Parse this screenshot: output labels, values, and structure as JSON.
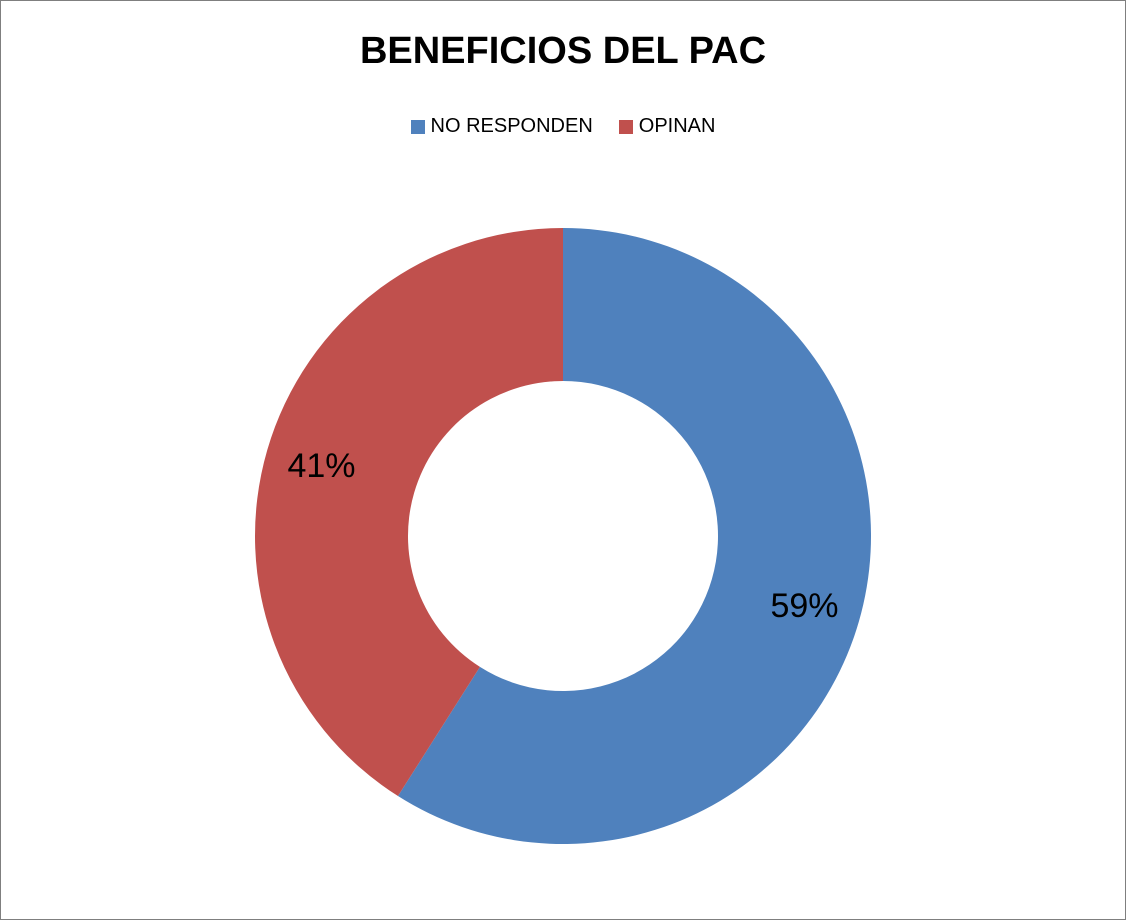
{
  "chart_data": {
    "type": "pie",
    "style": "donut",
    "title": "BENEFICIOS DEL PAC",
    "legend_position": "top",
    "categories": [
      "NO RESPONDEN",
      "OPINAN"
    ],
    "values": [
      59,
      41
    ],
    "data_labels": [
      "59%",
      "41%"
    ],
    "colors": [
      "#4F81BD",
      "#C0504D"
    ]
  }
}
